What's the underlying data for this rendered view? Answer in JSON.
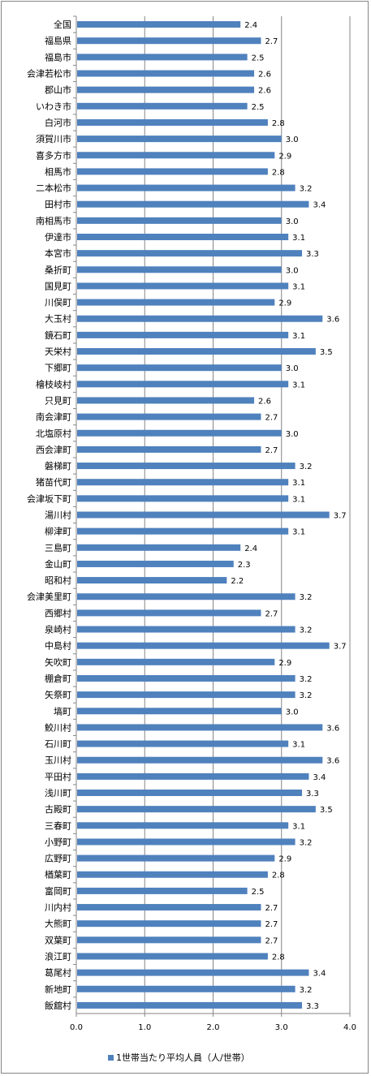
{
  "chart_data": {
    "type": "bar",
    "orientation": "horizontal",
    "categories": [
      "全国",
      "福島県",
      "福島市",
      "会津若松市",
      "郡山市",
      "いわき市",
      "白河市",
      "須賀川市",
      "喜多方市",
      "相馬市",
      "二本松市",
      "田村市",
      "南相馬市",
      "伊達市",
      "本宮市",
      "桑折町",
      "国見町",
      "川俣町",
      "大玉村",
      "鏡石町",
      "天栄村",
      "下郷町",
      "檜枝岐村",
      "只見町",
      "南会津町",
      "北塩原村",
      "西会津町",
      "磐梯町",
      "猪苗代町",
      "会津坂下町",
      "湯川村",
      "柳津町",
      "三島町",
      "金山町",
      "昭和村",
      "会津美里町",
      "西郷村",
      "泉崎村",
      "中島村",
      "矢吹町",
      "棚倉町",
      "矢祭町",
      "塙町",
      "鮫川村",
      "石川町",
      "玉川村",
      "平田村",
      "浅川町",
      "古殿町",
      "三春町",
      "小野町",
      "広野町",
      "楢葉町",
      "富岡町",
      "川内村",
      "大熊町",
      "双葉町",
      "浪江町",
      "葛尾村",
      "新地町",
      "飯舘村"
    ],
    "series": [
      {
        "name": "1世帯当たり平均人員（人/世帯）",
        "color": "#4F81BD",
        "values": [
          2.4,
          2.7,
          2.5,
          2.6,
          2.6,
          2.5,
          2.8,
          3.0,
          2.9,
          2.8,
          3.2,
          3.4,
          3.0,
          3.1,
          3.3,
          3.0,
          3.1,
          2.9,
          3.6,
          3.1,
          3.5,
          3.0,
          3.1,
          2.6,
          2.7,
          3.0,
          2.7,
          3.2,
          3.1,
          3.1,
          3.7,
          3.1,
          2.4,
          2.3,
          2.2,
          3.2,
          2.7,
          3.2,
          3.7,
          2.9,
          3.2,
          3.2,
          3.0,
          3.6,
          3.1,
          3.6,
          3.4,
          3.3,
          3.5,
          3.1,
          3.2,
          2.9,
          2.8,
          2.5,
          2.7,
          2.7,
          2.7,
          2.8,
          3.4,
          3.2,
          3.3
        ],
        "value_labels": [
          "2.4",
          "2.7",
          "2.5",
          "2.6",
          "2.6",
          "2.5",
          "2.8",
          "3.0",
          "2.9",
          "2.8",
          "3.2",
          "3.4",
          "3.0",
          "3.1",
          "3.3",
          "3.0",
          "3.1",
          "2.9",
          "3.6",
          "3.1",
          "3.5",
          "3.0",
          "3.1",
          "2.6",
          "2.7",
          "3.0",
          "2.7",
          "3.2",
          "3.1",
          "3.1",
          "3.7",
          "3.1",
          "2.4",
          "2.3",
          "2.2",
          "3.2",
          "2.7",
          "3.2",
          "3.7",
          "2.9",
          "3.2",
          "3.2",
          "3.0",
          "3.6",
          "3.1",
          "3.6",
          "3.4",
          "3.3",
          "3.5",
          "3.1",
          "3.2",
          "2.9",
          "2.8",
          "2.5",
          "2.7",
          "2.7",
          "2.7",
          "2.8",
          "3.4",
          "3.2",
          "3.3"
        ]
      }
    ],
    "xlim": [
      0,
      4
    ],
    "x_ticks": [
      "0.0",
      "1.0",
      "2.0",
      "3.0",
      "4.0"
    ],
    "grid": "vertical",
    "grid_color": "#868686",
    "legend_position": "bottom"
  }
}
